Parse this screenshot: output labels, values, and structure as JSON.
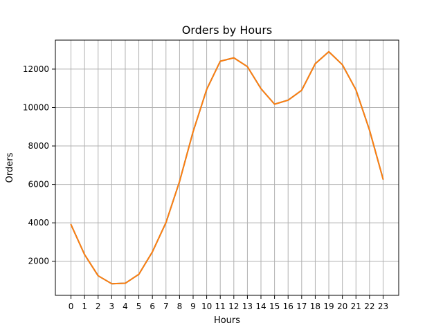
{
  "chart_data": {
    "type": "line",
    "title": "Orders by Hours",
    "xlabel": "Hours",
    "ylabel": "Orders",
    "x": [
      0,
      1,
      2,
      3,
      4,
      5,
      6,
      7,
      8,
      9,
      10,
      11,
      12,
      13,
      14,
      15,
      16,
      17,
      18,
      19,
      20,
      21,
      22,
      23
    ],
    "series": [
      {
        "color": "#1f77b4",
        "values": [
          3910,
          2350,
          1245,
          831,
          854,
          1321,
          2491,
          4011,
          6150,
          8748,
          10944,
          12411,
          12587,
          12129,
          10984,
          10175,
          10384,
          10899,
          12280,
          12905,
          12228,
          10920,
          8822,
          6275
        ]
      },
      {
        "color": "#ff7f0e",
        "values": [
          3910,
          2350,
          1245,
          831,
          854,
          1321,
          2491,
          4011,
          6150,
          8748,
          10944,
          12411,
          12587,
          12129,
          10984,
          10175,
          10384,
          10899,
          12280,
          12905,
          12228,
          10920,
          8822,
          6275
        ]
      }
    ],
    "xlim": [
      -1.15,
      24.15
    ],
    "ylim": [
      226,
      13509
    ],
    "xticks": [
      "0",
      "1",
      "2",
      "3",
      "4",
      "5",
      "6",
      "7",
      "8",
      "9",
      "10",
      "11",
      "12",
      "13",
      "14",
      "15",
      "16",
      "17",
      "18",
      "19",
      "20",
      "21",
      "22",
      "23"
    ],
    "yticks": [
      2000,
      4000,
      6000,
      8000,
      10000,
      12000
    ],
    "ytick_labels": [
      "2000",
      "4000",
      "6000",
      "8000",
      "10000",
      "12000"
    ],
    "grid": true
  }
}
